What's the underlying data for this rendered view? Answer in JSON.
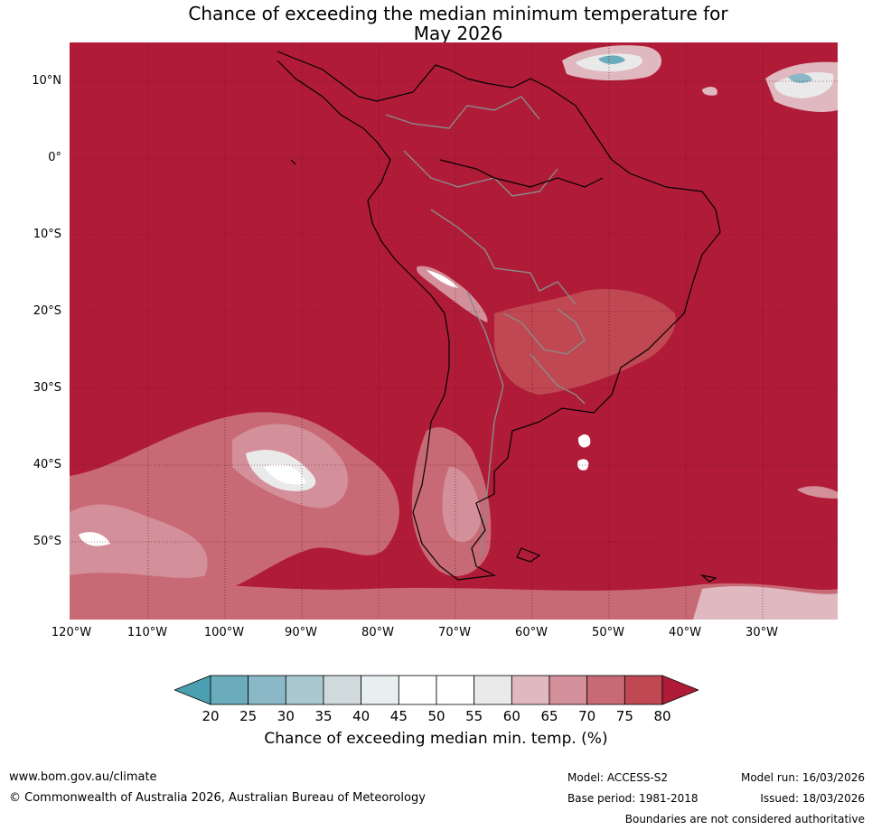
{
  "title": {
    "line1": "Chance of exceeding the median minimum temperature for",
    "line2": "May 2026"
  },
  "map": {
    "latitude_labels": [
      "10°N",
      "0°",
      "10°S",
      "20°S",
      "30°S",
      "40°S",
      "50°S"
    ],
    "longitude_labels": [
      "120°W",
      "110°W",
      "100°W",
      "90°W",
      "80°W",
      "70°W",
      "60°W",
      "50°W",
      "40°W",
      "30°W"
    ],
    "colors": {
      "background_over_80": "#b01c38",
      "gridline": "#5a0a18",
      "coastline": "#000000",
      "border": "#8a8a8a"
    }
  },
  "colorbar": {
    "ticks": [
      "20",
      "25",
      "30",
      "35",
      "40",
      "45",
      "50",
      "55",
      "60",
      "65",
      "70",
      "75",
      "80"
    ],
    "colors": [
      "#4aa0b0",
      "#6aacbb",
      "#8ab8c6",
      "#aac8cf",
      "#d0dadd",
      "#e8eff1",
      "#ffffff",
      "#ffffff",
      "#ebeaeb",
      "#e0b8bf",
      "#d4909a",
      "#c86a76",
      "#c04852",
      "#b01c38"
    ],
    "label": "Chance of exceeding median min. temp. (%)"
  },
  "footer": {
    "website": "www.bom.gov.au/climate",
    "copyright": "© Commonwealth of Australia 2026, Australian Bureau of Meteorology",
    "model": "Model: ACCESS-S2",
    "model_run": "Model run: 16/03/2026",
    "base_period": "Base period: 1981-2018",
    "issued": "Issued: 18/03/2026",
    "disclaimer": "Boundaries are not considered authoritative"
  }
}
